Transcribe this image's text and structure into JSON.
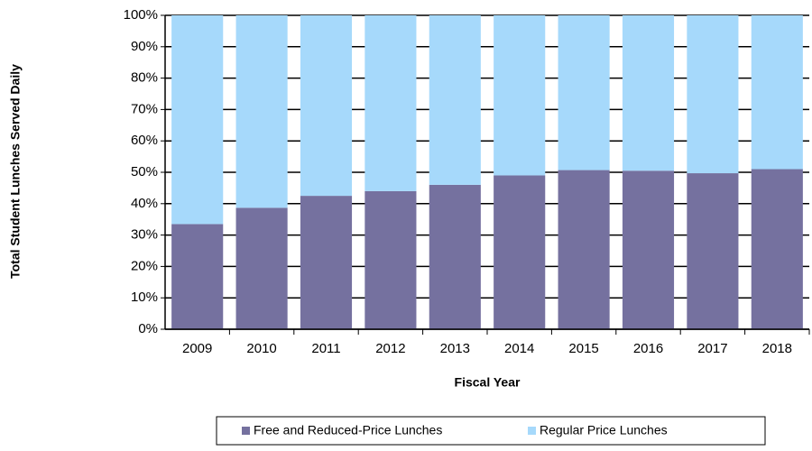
{
  "chart_data": {
    "type": "stacked_bar",
    "y_axis_label": "Total Student Lunches Served Daily",
    "x_axis_label": "Fiscal Year",
    "categories": [
      "2009",
      "2010",
      "2011",
      "2012",
      "2013",
      "2014",
      "2015",
      "2016",
      "2017",
      "2018"
    ],
    "series": [
      {
        "name": "Free and Reduced-Price Lunches",
        "color": "#75719f",
        "values": [
          33.5,
          38.7,
          42.5,
          44,
          46,
          49,
          50.7,
          50.5,
          49.7,
          51
        ]
      },
      {
        "name": "Regular Price Lunches",
        "color": "#a6d9fb",
        "values": [
          66.5,
          61.3,
          57.5,
          56,
          54,
          51,
          49.3,
          49.5,
          50.3,
          49
        ]
      }
    ],
    "ylim": [
      0,
      100
    ],
    "yticks": [
      {
        "value": 0,
        "label": "0%"
      },
      {
        "value": 10,
        "label": "10%"
      },
      {
        "value": 20,
        "label": "20%"
      },
      {
        "value": 30,
        "label": "30%"
      },
      {
        "value": 40,
        "label": "40%"
      },
      {
        "value": 50,
        "label": "50%"
      },
      {
        "value": 60,
        "label": "60%"
      },
      {
        "value": 70,
        "label": "70%"
      },
      {
        "value": 80,
        "label": "80%"
      },
      {
        "value": 90,
        "label": "90%"
      },
      {
        "value": 100,
        "label": "100%"
      }
    ],
    "grid": true,
    "legend": "bottom"
  }
}
